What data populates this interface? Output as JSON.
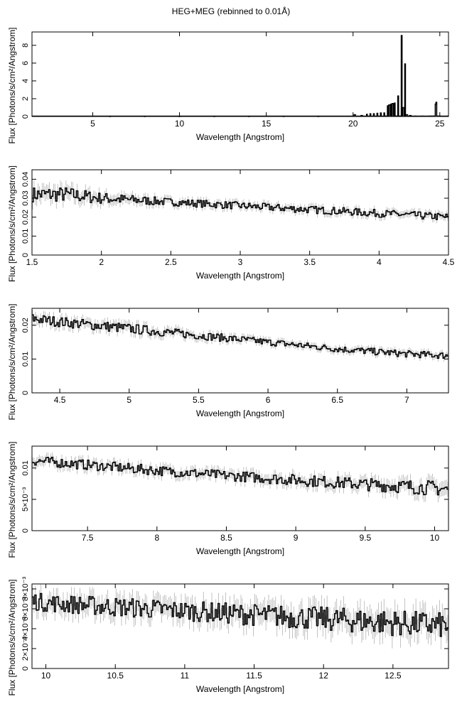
{
  "title": "HEG+MEG (rebinned to 0.01Å)",
  "chart_data": [
    {
      "type": "line",
      "style": "step histogram with error bars",
      "xlabel": "Wavelength [Angstrom]",
      "ylabel": "Flux [Photons/s/cm²/Angstrom]",
      "xlim": [
        1.5,
        25.5
      ],
      "ylim": [
        0,
        9.5
      ],
      "xticks": [
        5,
        10,
        15,
        20,
        25
      ],
      "xtick_labels": [
        "5",
        "10",
        "15",
        "20",
        "25"
      ],
      "yticks": [
        0,
        2,
        4,
        6,
        8
      ],
      "ytick_labels": [
        "0",
        "2",
        "4",
        "6",
        "8"
      ],
      "series": [
        {
          "x": [
            1.5,
            3.0,
            4.5,
            6.0,
            8.0,
            10.0,
            12.0,
            14.0,
            16.0,
            18.0,
            19.5,
            20.1,
            20.5,
            20.8,
            21.0,
            21.2,
            21.4,
            21.6,
            21.8,
            22.0,
            22.1,
            22.2,
            22.3,
            22.4,
            22.6,
            22.8,
            22.9,
            23.0,
            23.1,
            23.3,
            23.6,
            24.0,
            24.4,
            24.75,
            24.8,
            25.0,
            25.5
          ],
          "y": [
            0.03,
            0.02,
            0.02,
            0.01,
            0.01,
            0.01,
            0.01,
            0.01,
            0.01,
            0.01,
            0.02,
            0.2,
            0.1,
            0.25,
            0.3,
            0.3,
            0.35,
            0.4,
            0.4,
            1.2,
            1.3,
            1.4,
            1.45,
            1.5,
            2.3,
            9.1,
            1.0,
            5.9,
            0.2,
            0.1,
            0.05,
            0.05,
            0.05,
            1.4,
            1.6,
            0.05,
            0.05
          ]
        }
      ]
    },
    {
      "type": "line",
      "style": "step histogram with error bars",
      "xlabel": "Wavelength [Angstrom]",
      "ylabel": "Flux [Photons/s/cm²/Angstrom]",
      "xlim": [
        1.5,
        4.5
      ],
      "ylim": [
        0,
        0.045
      ],
      "xticks": [
        1.5,
        2,
        2.5,
        3,
        3.5,
        4,
        4.5
      ],
      "xtick_labels": [
        "1.5",
        "2",
        "2.5",
        "3",
        "3.5",
        "4",
        "4.5"
      ],
      "yticks": [
        0,
        0.01,
        0.02,
        0.03,
        0.04
      ],
      "ytick_labels": [
        "0",
        "0.01",
        "0.02",
        "0.03",
        "0.04"
      ],
      "series": [
        {
          "x": [
            1.5,
            1.75,
            2.0,
            2.5,
            3.0,
            3.5,
            4.0,
            4.5
          ],
          "y": [
            0.032,
            0.032,
            0.03,
            0.028,
            0.026,
            0.024,
            0.022,
            0.02
          ],
          "error": [
            0.004,
            0.004,
            0.003,
            0.002,
            0.002,
            0.002,
            0.002,
            0.002
          ]
        }
      ]
    },
    {
      "type": "line",
      "style": "step histogram with error bars",
      "xlabel": "Wavelength [Angstrom]",
      "ylabel": "Flux [Photons/s/cm²/Angstrom]",
      "xlim": [
        4.3,
        7.3
      ],
      "ylim": [
        0,
        0.025
      ],
      "xticks": [
        4.5,
        5,
        5.5,
        6,
        6.5,
        7
      ],
      "xtick_labels": [
        "4.5",
        "5",
        "5.5",
        "6",
        "6.5",
        "7"
      ],
      "yticks": [
        0,
        0.01,
        0.02
      ],
      "ytick_labels": [
        "0",
        "0.01",
        "0.02"
      ],
      "series": [
        {
          "x": [
            4.3,
            4.5,
            5.0,
            5.5,
            6.0,
            6.5,
            7.0,
            7.3
          ],
          "y": [
            0.022,
            0.021,
            0.019,
            0.017,
            0.015,
            0.013,
            0.0115,
            0.011
          ],
          "error": [
            0.0015,
            0.0015,
            0.0015,
            0.0012,
            0.001,
            0.001,
            0.001,
            0.001
          ]
        }
      ]
    },
    {
      "type": "line",
      "style": "step histogram with error bars",
      "xlabel": "Wavelength [Angstrom]",
      "ylabel": "Flux [Photons/s/cm²/Angstrom]",
      "xlim": [
        7.1,
        10.1
      ],
      "ylim": [
        0,
        0.0135
      ],
      "xticks": [
        7.5,
        8,
        8.5,
        9,
        9.5,
        10
      ],
      "xtick_labels": [
        "7.5",
        "8",
        "8.5",
        "9",
        "9.5",
        "10"
      ],
      "yticks": [
        0,
        0.005,
        0.01
      ],
      "ytick_labels": [
        "0",
        "5×10⁻³",
        "0.01"
      ],
      "series": [
        {
          "x": [
            7.1,
            7.5,
            8.0,
            8.5,
            9.0,
            9.5,
            10.0,
            10.1
          ],
          "y": [
            0.0112,
            0.0105,
            0.0096,
            0.0088,
            0.0081,
            0.0074,
            0.0068,
            0.0066
          ],
          "error": [
            0.0008,
            0.0008,
            0.0008,
            0.0008,
            0.0009,
            0.001,
            0.0012,
            0.0012
          ]
        }
      ]
    },
    {
      "type": "line",
      "style": "step histogram with error bars",
      "xlabel": "Wavelength [Angstrom]",
      "ylabel": "Flux [Photons/s/cm²/Angstrom]",
      "xlim": [
        9.9,
        12.9
      ],
      "ylim": [
        0,
        0.0085
      ],
      "xticks": [
        10,
        10.5,
        11,
        11.5,
        12,
        12.5
      ],
      "xtick_labels": [
        "10",
        "10.5",
        "11",
        "11.5",
        "12",
        "12.5"
      ],
      "yticks": [
        0,
        0.002,
        0.004,
        0.006,
        0.008
      ],
      "ytick_labels": [
        "0",
        "2×10⁻³",
        "4×10⁻³",
        "6×10⁻³",
        "8×10⁻³"
      ],
      "series": [
        {
          "x": [
            9.9,
            10.0,
            10.5,
            11.0,
            11.5,
            12.0,
            12.5,
            12.9
          ],
          "y": [
            0.0068,
            0.0066,
            0.0062,
            0.0058,
            0.0054,
            0.005,
            0.0046,
            0.0043
          ],
          "error": [
            0.0009,
            0.0009,
            0.001,
            0.001,
            0.0011,
            0.0012,
            0.0013,
            0.0013
          ]
        }
      ]
    }
  ]
}
